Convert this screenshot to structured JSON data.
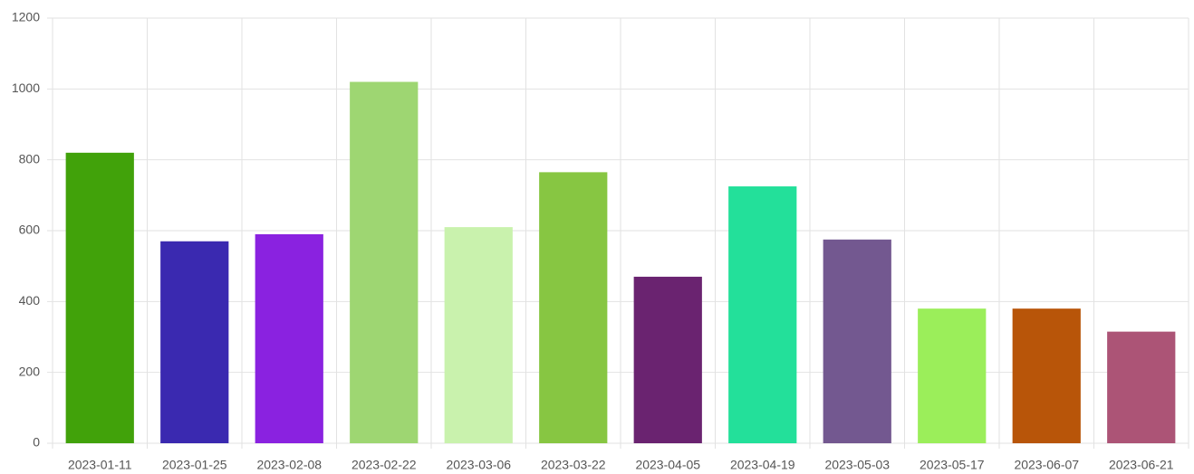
{
  "chart_data": {
    "type": "bar",
    "categories": [
      "2023-01-11",
      "2023-01-25",
      "2023-02-08",
      "2023-02-22",
      "2023-03-06",
      "2023-03-22",
      "2023-04-05",
      "2023-04-19",
      "2023-05-03",
      "2023-05-17",
      "2023-06-07",
      "2023-06-21"
    ],
    "values": [
      820,
      570,
      590,
      1020,
      610,
      765,
      470,
      725,
      575,
      380,
      380,
      315
    ],
    "colors": [
      "#41a20a",
      "#3a29b0",
      "#8a22e0",
      "#9ed672",
      "#c9f2ad",
      "#87c642",
      "#6a2370",
      "#23e09a",
      "#735890",
      "#9bee5a",
      "#b85509",
      "#ac5476"
    ],
    "ylim": [
      0,
      1200
    ],
    "yticks": [
      0,
      200,
      400,
      600,
      800,
      1000,
      1200
    ],
    "grid": true
  }
}
